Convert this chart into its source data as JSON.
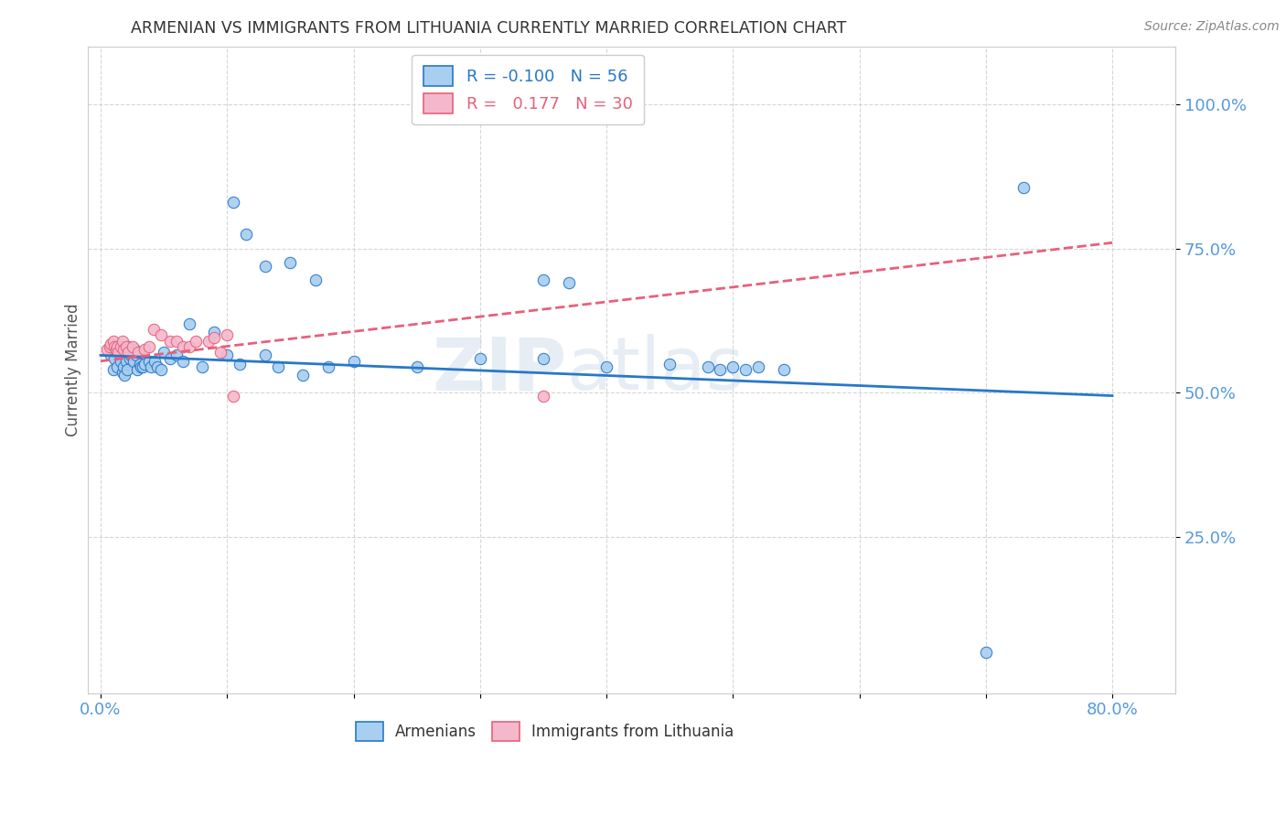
{
  "title": "ARMENIAN VS IMMIGRANTS FROM LITHUANIA CURRENTLY MARRIED CORRELATION CHART",
  "source": "Source: ZipAtlas.com",
  "ylabel_label": "Currently Married",
  "color_armenian": "#a8cef0",
  "color_lithuania": "#f4b8cc",
  "color_line_armenian": "#2878c8",
  "color_line_lithuania": "#e8607a",
  "watermark": "ZIPatlas",
  "armenian_points_x": [
    0.008,
    0.01,
    0.011,
    0.013,
    0.015,
    0.016,
    0.017,
    0.018,
    0.019,
    0.02,
    0.021,
    0.022,
    0.023,
    0.024,
    0.025,
    0.026,
    0.027,
    0.028,
    0.029,
    0.03,
    0.031,
    0.032,
    0.033,
    0.035,
    0.038,
    0.04,
    0.043,
    0.045,
    0.048,
    0.05,
    0.055,
    0.06,
    0.065,
    0.07,
    0.08,
    0.09,
    0.1,
    0.11,
    0.13,
    0.14,
    0.16,
    0.18,
    0.2,
    0.25,
    0.3,
    0.35,
    0.4,
    0.45,
    0.48,
    0.49,
    0.5,
    0.51,
    0.52,
    0.54,
    0.7,
    0.73
  ],
  "armenian_points_y": [
    0.565,
    0.54,
    0.56,
    0.545,
    0.575,
    0.555,
    0.535,
    0.545,
    0.53,
    0.555,
    0.54,
    0.58,
    0.56,
    0.565,
    0.565,
    0.555,
    0.575,
    0.565,
    0.54,
    0.57,
    0.55,
    0.545,
    0.545,
    0.55,
    0.555,
    0.545,
    0.555,
    0.545,
    0.54,
    0.57,
    0.56,
    0.565,
    0.555,
    0.62,
    0.545,
    0.605,
    0.565,
    0.55,
    0.565,
    0.545,
    0.53,
    0.545,
    0.555,
    0.545,
    0.56,
    0.56,
    0.545,
    0.55,
    0.545,
    0.54,
    0.545,
    0.54,
    0.545,
    0.54,
    0.05,
    0.855
  ],
  "armenia_outliers": [
    [
      0.105,
      0.83
    ],
    [
      0.115,
      0.775
    ],
    [
      0.13,
      0.72
    ],
    [
      0.15,
      0.725
    ],
    [
      0.17,
      0.695
    ],
    [
      0.35,
      0.695
    ],
    [
      0.37,
      0.69
    ]
  ],
  "lithuania_points_x": [
    0.005,
    0.007,
    0.008,
    0.01,
    0.011,
    0.012,
    0.013,
    0.014,
    0.016,
    0.017,
    0.018,
    0.02,
    0.022,
    0.025,
    0.03,
    0.035,
    0.038,
    0.042,
    0.048,
    0.055,
    0.06,
    0.065,
    0.07,
    0.075,
    0.085,
    0.09,
    0.095,
    0.1,
    0.105,
    0.35
  ],
  "lithuania_points_y": [
    0.575,
    0.58,
    0.585,
    0.59,
    0.58,
    0.575,
    0.58,
    0.57,
    0.58,
    0.59,
    0.575,
    0.58,
    0.57,
    0.58,
    0.57,
    0.575,
    0.58,
    0.61,
    0.6,
    0.59,
    0.59,
    0.58,
    0.58,
    0.59,
    0.59,
    0.595,
    0.57,
    0.6,
    0.495,
    0.495
  ],
  "arm_line_x": [
    0.0,
    0.8
  ],
  "arm_line_y": [
    0.565,
    0.495
  ],
  "lith_line_x": [
    0.0,
    0.8
  ],
  "lith_line_y": [
    0.555,
    0.76
  ],
  "xlim": [
    -0.01,
    0.85
  ],
  "ylim": [
    -0.02,
    1.1
  ],
  "xtick_pos": [
    0.0,
    0.1,
    0.2,
    0.3,
    0.4,
    0.5,
    0.6,
    0.7,
    0.8
  ],
  "xticklabels": [
    "0.0%",
    "",
    "",
    "",
    "",
    "",
    "",
    "",
    "80.0%"
  ],
  "ytick_pos": [
    0.25,
    0.5,
    0.75,
    1.0
  ],
  "yticklabels": [
    "25.0%",
    "50.0%",
    "75.0%",
    "100.0%"
  ]
}
